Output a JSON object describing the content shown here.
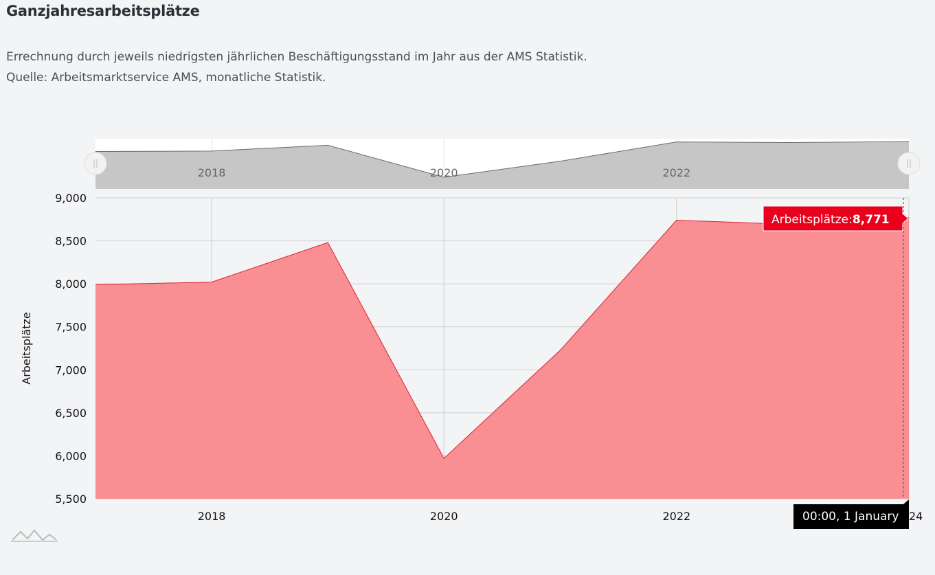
{
  "header": {
    "title": "Ganzjahresarbeitsplätze",
    "description_line1": "Errechnung durch jeweils niedrigsten jährlichen Beschäftigungsstand im Jahr aus der AMS Statistik.",
    "description_line2": "Quelle: Arbeitsmarktservice AMS, monatliche Statistik."
  },
  "colors": {
    "area_fill": "#f98f92",
    "area_line": "#d9232d",
    "navigator_fill": "#c6c6c6",
    "navigator_line": "#6b6b6b",
    "tooltip_bg": "#e8001c",
    "date_bg": "#000000"
  },
  "chart_data": {
    "type": "area",
    "title": "",
    "ylabel": "Arbeitsplätze",
    "xlabel": "",
    "x": [
      "2017-01-01",
      "2018-01-01",
      "2019-01-01",
      "2020-01-01",
      "2021-01-01",
      "2022-01-01",
      "2023-01-01",
      "2024-01-01"
    ],
    "series": [
      {
        "name": "Arbeitsplätze",
        "values": [
          7990,
          8020,
          8480,
          5970,
          7230,
          8740,
          8690,
          8771
        ]
      }
    ],
    "ylim": [
      5500,
      9000
    ],
    "yticks": [
      "9,000",
      "8,500",
      "8,000",
      "7,500",
      "7,000",
      "6,500",
      "6,000",
      "5,500"
    ],
    "xticks": [
      "2018",
      "2020",
      "2022"
    ],
    "navigator_xticks": [
      "2018",
      "2020",
      "2022"
    ],
    "grid": true,
    "tooltip": {
      "label": "Arbeitsplätze:",
      "value": "8,771",
      "date": "00:00, 1 January",
      "date_overflow_suffix": "24"
    }
  }
}
